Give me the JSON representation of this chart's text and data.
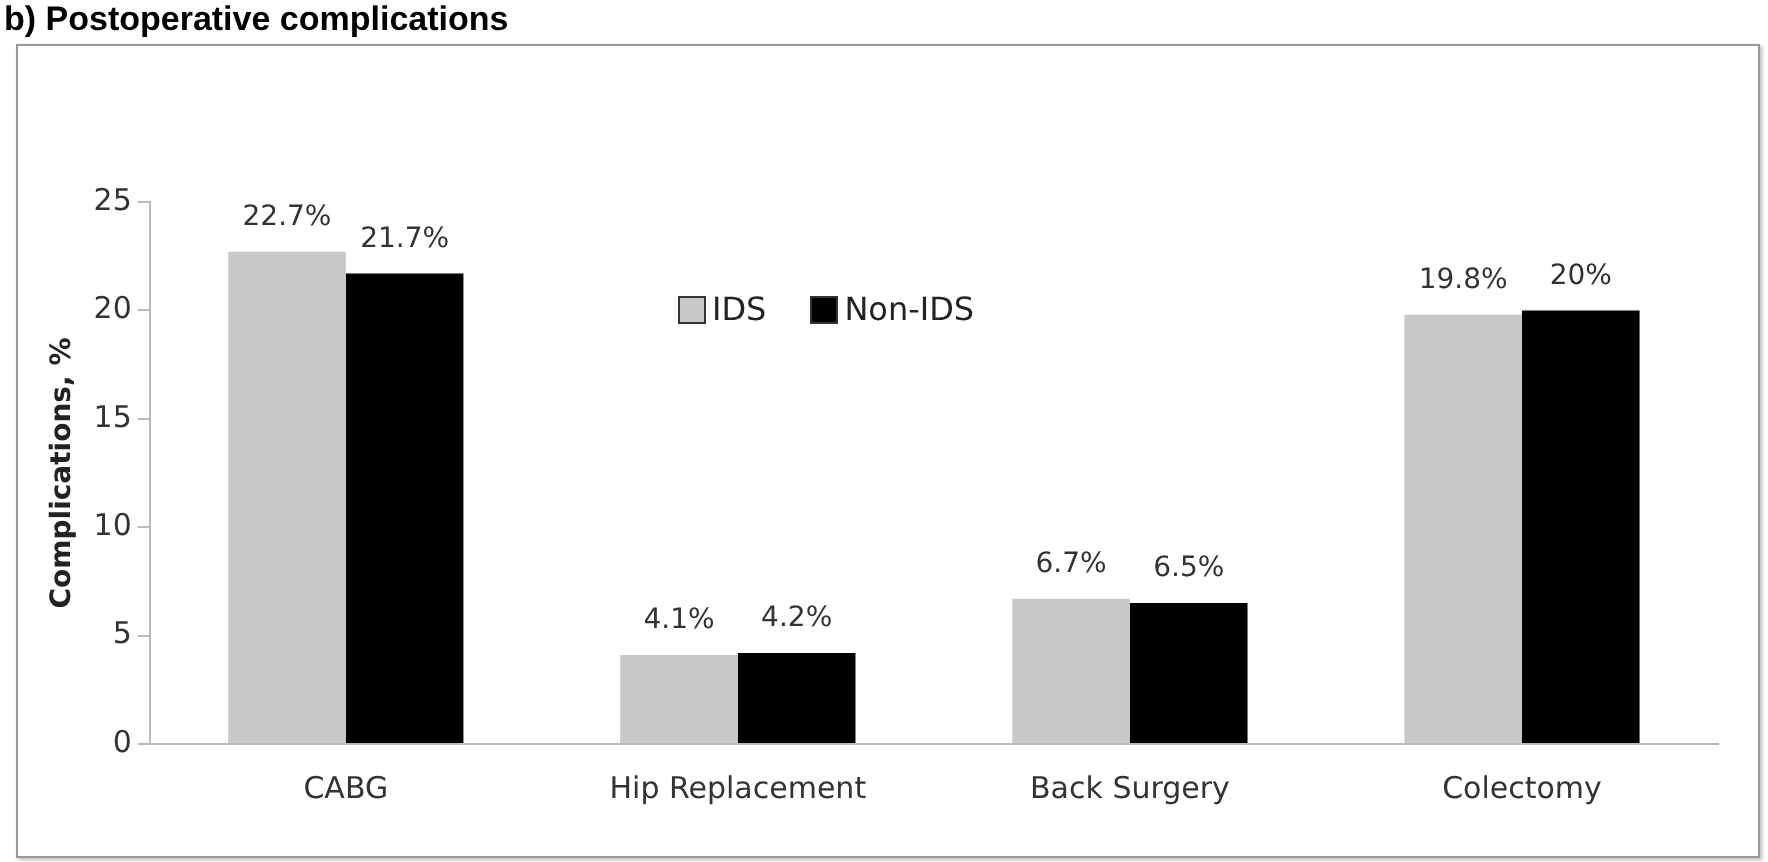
{
  "chart_data": {
    "type": "bar",
    "title": "b) Postoperative complications",
    "ylabel": "Complications, %",
    "categories": [
      "CABG",
      "Hip Replacement",
      "Back Surgery",
      "Colectomy"
    ],
    "series": [
      {
        "name": "IDS",
        "color": "#c8c8c8",
        "values": [
          22.7,
          4.1,
          6.7,
          19.8
        ],
        "value_labels": [
          "22.7%",
          "4.1%",
          "6.7%",
          "19.8%"
        ]
      },
      {
        "name": "Non-IDS",
        "color": "#000000",
        "values": [
          21.7,
          4.2,
          6.5,
          20
        ],
        "value_labels": [
          "21.7%",
          "4.2%",
          "6.5%",
          "20%"
        ]
      }
    ],
    "ylim": [
      0,
      25
    ],
    "yticks": [
      0,
      5,
      10,
      15,
      20,
      25
    ],
    "grid": false,
    "legend": "top"
  }
}
